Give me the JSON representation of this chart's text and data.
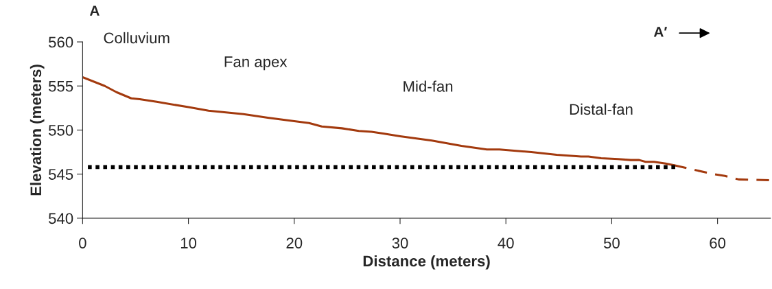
{
  "chart_data": {
    "type": "line",
    "xlabel": "Distance (meters)",
    "ylabel": "Elevation (meters)",
    "annotations": [
      "A",
      "Colluvium",
      "Fan apex",
      "Mid-fan",
      "Distal-fan",
      "A′"
    ],
    "series": [
      {
        "color": "#a33a0e",
        "line_style": "solid",
        "x": [
          0,
          2.1,
          3.2,
          4.6,
          5.4,
          7.0,
          10,
          11.9,
          15.2,
          17.5,
          20,
          21.4,
          22.6,
          24.5,
          26.1,
          27.3,
          28.4,
          30,
          33,
          35.8,
          38.2,
          39.4,
          42.4,
          44.8,
          47.1,
          47.8,
          49.0,
          50.6,
          51.8,
          52.6,
          53.2,
          54.0,
          55.1,
          55.9
        ],
        "values": [
          556.0,
          555.0,
          554.3,
          553.6,
          553.5,
          553.2,
          552.6,
          552.2,
          551.8,
          551.4,
          551.0,
          550.8,
          550.4,
          550.2,
          549.9,
          549.8,
          549.6,
          549.3,
          548.8,
          548.2,
          547.8,
          547.8,
          547.5,
          547.2,
          547.0,
          547.0,
          546.8,
          546.7,
          546.6,
          546.6,
          546.4,
          546.4,
          546.2,
          546.0
        ]
      },
      {
        "color": "#a33a0e",
        "line_style": "dashed",
        "x": [
          55.9,
          57.4,
          59.6,
          60.7,
          62.0,
          65
        ],
        "values": [
          546.0,
          545.6,
          545.0,
          544.8,
          544.4,
          544.3
        ]
      },
      {
        "color": "#000000",
        "line_style": "dotted",
        "x": [
          0.5,
          56
        ],
        "values": [
          545.8,
          545.8
        ]
      }
    ],
    "xlim": [
      0,
      65
    ],
    "xticks": [
      0,
      10,
      20,
      30,
      40,
      50,
      60
    ],
    "ylim": [
      540,
      560
    ],
    "yticks": [
      540,
      545,
      550,
      555,
      560
    ],
    "grid": false,
    "legend": false
  }
}
